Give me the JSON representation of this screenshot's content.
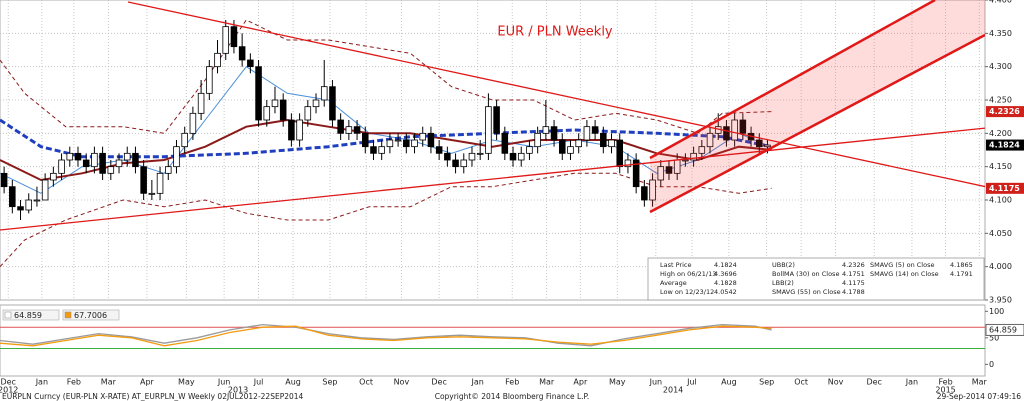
{
  "chart_data": [
    {
      "type": "candlestick",
      "title": "EUR / PLN Weekly",
      "xlim": [
        0,
        120
      ],
      "xticks": [
        {
          "value": 1,
          "label": "Dec"
        },
        {
          "value": 5.1,
          "label": "Jan"
        },
        {
          "value": 9,
          "label": "Feb"
        },
        {
          "value": 13.2,
          "label": "Mar"
        },
        {
          "value": 17.9,
          "label": "Apr"
        },
        {
          "value": 22.7,
          "label": "May"
        },
        {
          "value": 27.3,
          "label": "Jun"
        },
        {
          "value": 31.5,
          "label": "Jul"
        },
        {
          "value": 35.7,
          "label": "Aug"
        },
        {
          "value": 40.2,
          "label": "Sep"
        },
        {
          "value": 44.6,
          "label": "Oct"
        },
        {
          "value": 48.9,
          "label": "Nov"
        },
        {
          "value": 53.5,
          "label": "Dec"
        },
        {
          "value": 58.2,
          "label": "Jan"
        },
        {
          "value": 62.4,
          "label": "Feb"
        },
        {
          "value": 66.6,
          "label": "Mar"
        },
        {
          "value": 70.7,
          "label": "Apr"
        },
        {
          "value": 75.2,
          "label": "May"
        },
        {
          "value": 79.9,
          "label": "Jun"
        },
        {
          "value": 84.3,
          "label": "Jul"
        },
        {
          "value": 88.8,
          "label": "Aug"
        },
        {
          "value": 93.4,
          "label": "Sep"
        },
        {
          "value": 97.6,
          "label": "Oct"
        },
        {
          "value": 101.8,
          "label": "Nov"
        },
        {
          "value": 106.5,
          "label": "Dec"
        },
        {
          "value": 111.1,
          "label": "Jan"
        },
        {
          "value": 115.2,
          "label": "Feb"
        },
        {
          "value": 119.3,
          "label": "Mar"
        }
      ],
      "year_labels": [
        {
          "value": 1,
          "label": "2012"
        },
        {
          "value": 29,
          "label": "2013"
        },
        {
          "value": 82,
          "label": "2014"
        },
        {
          "value": 115.2,
          "label": "2015"
        }
      ],
      "ylim": [
        3.95,
        4.4
      ],
      "yticks": [
        {
          "value": 3.95,
          "label": "3.950"
        },
        {
          "value": 4.0,
          "label": "4.000"
        },
        {
          "value": 4.05,
          "label": "4.050"
        },
        {
          "value": 4.1,
          "label": "4.100"
        },
        {
          "value": 4.15,
          "label": "4.150"
        },
        {
          "value": 4.2,
          "label": "4.200"
        },
        {
          "value": 4.25,
          "label": "4.250"
        },
        {
          "value": 4.3,
          "label": "4.300"
        },
        {
          "value": 4.35,
          "label": "4.350"
        },
        {
          "value": 4.4,
          "label": "4.400"
        }
      ],
      "grid": true,
      "candles": {
        "open": [
          4.14,
          4.12,
          4.09,
          4.085,
          4.1,
          4.1,
          4.13,
          4.14,
          4.16,
          4.17,
          4.16,
          4.15,
          4.17,
          4.14,
          4.15,
          4.16,
          4.17,
          4.15,
          4.11,
          4.11,
          4.14,
          4.15,
          4.18,
          4.2,
          4.23,
          4.26,
          4.3,
          4.32,
          4.36,
          4.33,
          4.31,
          4.3,
          4.22,
          4.24,
          4.25,
          4.22,
          4.19,
          4.22,
          4.24,
          4.25,
          4.27,
          4.22,
          4.2,
          4.21,
          4.2,
          4.18,
          4.17,
          4.18,
          4.19,
          4.19,
          4.18,
          4.19,
          4.2,
          4.18,
          4.17,
          4.16,
          4.15,
          4.16,
          4.17,
          4.17,
          4.24,
          4.2,
          4.17,
          4.16,
          4.17,
          4.18,
          4.2,
          4.21,
          4.19,
          4.17,
          4.18,
          4.19,
          4.21,
          4.2,
          4.18,
          4.19,
          4.15,
          4.16,
          4.12,
          4.1,
          4.13,
          4.15,
          4.14,
          4.16,
          4.16,
          4.17,
          4.18,
          4.2,
          4.21,
          4.19,
          4.22,
          4.2,
          4.19,
          4.18
        ],
        "high": [
          4.15,
          4.13,
          4.1,
          4.11,
          4.12,
          4.14,
          4.15,
          4.17,
          4.18,
          4.18,
          4.17,
          4.18,
          4.18,
          4.16,
          4.17,
          4.18,
          4.18,
          4.16,
          4.13,
          4.15,
          4.16,
          4.19,
          4.21,
          4.24,
          4.28,
          4.31,
          4.34,
          4.37,
          4.37,
          4.35,
          4.32,
          4.31,
          4.25,
          4.27,
          4.26,
          4.23,
          4.23,
          4.25,
          4.26,
          4.31,
          4.28,
          4.23,
          4.22,
          4.22,
          4.21,
          4.19,
          4.19,
          4.2,
          4.2,
          4.2,
          4.2,
          4.21,
          4.21,
          4.19,
          4.18,
          4.17,
          4.17,
          4.18,
          4.19,
          4.26,
          4.25,
          4.21,
          4.18,
          4.18,
          4.19,
          4.21,
          4.25,
          4.22,
          4.2,
          4.19,
          4.2,
          4.22,
          4.22,
          4.21,
          4.2,
          4.2,
          4.17,
          4.17,
          4.13,
          4.14,
          4.16,
          4.16,
          4.17,
          4.17,
          4.18,
          4.19,
          4.21,
          4.23,
          4.22,
          4.23,
          4.23,
          4.21,
          4.2,
          4.19
        ],
        "low": [
          4.11,
          4.08,
          4.07,
          4.08,
          4.09,
          4.1,
          4.12,
          4.13,
          4.15,
          4.15,
          4.14,
          4.14,
          4.13,
          4.13,
          4.14,
          4.15,
          4.14,
          4.1,
          4.1,
          4.1,
          4.13,
          4.14,
          4.17,
          4.19,
          4.22,
          4.25,
          4.29,
          4.31,
          4.32,
          4.3,
          4.29,
          4.21,
          4.21,
          4.23,
          4.21,
          4.18,
          4.18,
          4.21,
          4.23,
          4.24,
          4.21,
          4.19,
          4.19,
          4.19,
          4.17,
          4.16,
          4.16,
          4.17,
          4.18,
          4.17,
          4.17,
          4.18,
          4.17,
          4.16,
          4.15,
          4.14,
          4.14,
          4.15,
          4.16,
          4.16,
          4.19,
          4.16,
          4.15,
          4.15,
          4.16,
          4.17,
          4.19,
          4.18,
          4.16,
          4.16,
          4.17,
          4.18,
          4.19,
          4.17,
          4.17,
          4.14,
          4.14,
          4.11,
          4.09,
          4.09,
          4.12,
          4.13,
          4.13,
          4.15,
          4.15,
          4.16,
          4.17,
          4.19,
          4.18,
          4.18,
          4.19,
          4.18,
          4.17,
          4.17
        ],
        "close": [
          4.12,
          4.09,
          4.085,
          4.1,
          4.1,
          4.13,
          4.14,
          4.16,
          4.17,
          4.16,
          4.15,
          4.17,
          4.14,
          4.15,
          4.16,
          4.17,
          4.15,
          4.11,
          4.11,
          4.14,
          4.15,
          4.18,
          4.2,
          4.23,
          4.26,
          4.3,
          4.32,
          4.36,
          4.33,
          4.31,
          4.3,
          4.22,
          4.24,
          4.25,
          4.22,
          4.19,
          4.22,
          4.24,
          4.25,
          4.27,
          4.22,
          4.2,
          4.21,
          4.2,
          4.18,
          4.17,
          4.18,
          4.19,
          4.19,
          4.18,
          4.19,
          4.2,
          4.18,
          4.17,
          4.16,
          4.15,
          4.16,
          4.17,
          4.17,
          4.24,
          4.2,
          4.17,
          4.16,
          4.17,
          4.18,
          4.2,
          4.21,
          4.19,
          4.17,
          4.18,
          4.19,
          4.21,
          4.2,
          4.18,
          4.19,
          4.15,
          4.16,
          4.12,
          4.1,
          4.13,
          4.15,
          4.14,
          4.16,
          4.16,
          4.17,
          4.18,
          4.2,
          4.21,
          4.19,
          4.22,
          4.2,
          4.19,
          4.18,
          4.1824
        ]
      },
      "up_color": "#ffffff",
      "down_color": "#000000",
      "series": [
        {
          "color": "#8b1a1a",
          "dash": true,
          "width": 1,
          "x": [
            0,
            3,
            8,
            15,
            20,
            25,
            30,
            35,
            40,
            45,
            50,
            55,
            60,
            65,
            70,
            75,
            80,
            85,
            88,
            94
          ],
          "values": [
            4.31,
            4.26,
            4.21,
            4.21,
            4.2,
            4.28,
            4.37,
            4.34,
            4.34,
            4.33,
            4.32,
            4.27,
            4.25,
            4.25,
            4.22,
            4.23,
            4.22,
            4.2,
            4.23,
            4.2326
          ]
        },
        {
          "color": "#8b1a1a",
          "dash": true,
          "width": 1,
          "x": [
            0,
            3,
            8,
            15,
            20,
            25,
            30,
            35,
            40,
            45,
            50,
            55,
            60,
            65,
            70,
            75,
            80,
            85,
            90,
            94
          ],
          "values": [
            4.0,
            4.04,
            4.07,
            4.1,
            4.09,
            4.1,
            4.08,
            4.07,
            4.07,
            4.09,
            4.09,
            4.12,
            4.12,
            4.13,
            4.14,
            4.14,
            4.12,
            4.12,
            4.11,
            4.1175
          ]
        },
        {
          "color": "#4a90d9",
          "dash": false,
          "width": 1,
          "x": [
            0,
            5,
            10,
            15,
            20,
            25,
            30,
            35,
            40,
            45,
            50,
            55,
            60,
            65,
            70,
            75,
            80,
            85,
            90,
            94
          ],
          "values": [
            4.14,
            4.11,
            4.15,
            4.16,
            4.14,
            4.22,
            4.3,
            4.26,
            4.25,
            4.2,
            4.19,
            4.17,
            4.19,
            4.18,
            4.19,
            4.18,
            4.14,
            4.16,
            4.2,
            4.1791
          ]
        },
        {
          "color": "#8b1a1a",
          "dash": false,
          "width": 2,
          "x": [
            0,
            5,
            10,
            15,
            20,
            25,
            30,
            35,
            40,
            45,
            50,
            55,
            60,
            65,
            70,
            75,
            80,
            85,
            90,
            94
          ],
          "values": [
            4.16,
            4.13,
            4.14,
            4.155,
            4.16,
            4.18,
            4.21,
            4.22,
            4.21,
            4.2,
            4.2,
            4.19,
            4.18,
            4.19,
            4.19,
            4.19,
            4.17,
            4.16,
            4.18,
            4.1751
          ]
        },
        {
          "color": "#1f3fbf",
          "dash": true,
          "width": 3,
          "x": [
            0,
            5,
            10,
            20,
            30,
            40,
            50,
            60,
            70,
            80,
            88,
            94
          ],
          "values": [
            4.22,
            4.18,
            4.165,
            4.165,
            4.17,
            4.18,
            4.195,
            4.2,
            4.205,
            4.2,
            4.195,
            4.18
          ]
        }
      ],
      "price_labels": [
        {
          "value": 4.2326,
          "color": "#d0201a"
        },
        {
          "value": 4.1824,
          "color": "#000000"
        },
        {
          "value": 4.1175,
          "color": "#d0201a"
        }
      ],
      "legend": [
        {
          "label": "Last Price",
          "value": 4.1824
        },
        {
          "label": "High on 06/21/13",
          "value": 4.3696
        },
        {
          "label": "Average",
          "value": 4.1828
        },
        {
          "label": "Low on 12/23/12",
          "value": 4.0542
        },
        {
          "label": "UBB(2)",
          "value": 4.2326
        },
        {
          "label": "BollMA (30) on Close",
          "value": 4.1751
        },
        {
          "label": "LBB(2)",
          "value": 4.1175
        },
        {
          "label": "SMAVG (55) on Close",
          "value": 4.1788
        },
        {
          "label": "SMAVG (5) on Close",
          "value": 4.1865
        },
        {
          "label": "SMAVG (14) on Close",
          "value": 4.1791
        }
      ]
    },
    {
      "type": "line",
      "xlim": [
        0,
        120
      ],
      "ylim": [
        -20,
        110
      ],
      "yticks": [
        0,
        50,
        100
      ],
      "ref_lines": [
        {
          "value": 70,
          "color": "#e05050"
        },
        {
          "value": 30,
          "color": "#3cb043"
        }
      ],
      "last_label": 64.859,
      "legend": [
        {
          "label": "64.859",
          "color": "#ffffff"
        },
        {
          "label": "67.7006",
          "color": "#f39c12"
        }
      ],
      "series": [
        {
          "color": "#9a9a9a",
          "x": [
            0,
            4,
            8,
            12,
            16,
            20,
            24,
            28,
            32,
            36,
            40,
            44,
            48,
            52,
            56,
            60,
            64,
            68,
            72,
            76,
            80,
            84,
            88,
            92,
            94
          ],
          "values": [
            45,
            38,
            48,
            58,
            52,
            40,
            50,
            65,
            75,
            70,
            58,
            50,
            47,
            52,
            55,
            52,
            50,
            40,
            35,
            48,
            58,
            68,
            75,
            72,
            64.859
          ]
        },
        {
          "color": "#f39c12",
          "x": [
            0,
            4,
            8,
            12,
            16,
            20,
            24,
            28,
            32,
            36,
            40,
            44,
            48,
            52,
            56,
            60,
            64,
            68,
            72,
            76,
            80,
            84,
            88,
            92,
            94
          ],
          "values": [
            40,
            35,
            45,
            55,
            50,
            35,
            45,
            60,
            70,
            72,
            55,
            48,
            45,
            50,
            52,
            50,
            48,
            42,
            38,
            45,
            55,
            65,
            72,
            70,
            67.7006
          ]
        }
      ]
    }
  ],
  "footer": {
    "left": "EURPLN Curncy (EUR-PLN X-RATE) AT_EURPLN_W  Weekly 02JUL2012-22SEP2014",
    "center": "Copyright© 2014 Bloomberg Finance L.P.",
    "right": "29-Sep-2014 07:49:16"
  }
}
